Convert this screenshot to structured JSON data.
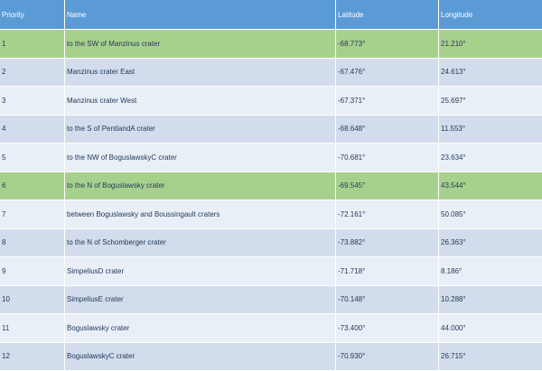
{
  "columns": [
    "Priority",
    "Name",
    "Latitude",
    "Longitude"
  ],
  "rows": [
    {
      "priority": "1",
      "name": "to the SW of Manzinus crater",
      "lat": "-68.773°",
      "lon": "21.210°",
      "highlight": true
    },
    {
      "priority": "2",
      "name": "Manzinus crater East",
      "lat": "-67.476°",
      "lon": "24.613°",
      "highlight": false
    },
    {
      "priority": "3",
      "name": "Manzinus crater West",
      "lat": "-67.371°",
      "lon": "25.697°",
      "highlight": false
    },
    {
      "priority": "4",
      "name": "to the S of PentlandA crater",
      "lat": "-68.648°",
      "lon": "11.553°",
      "highlight": false
    },
    {
      "priority": "5",
      "name": "to the NW of BoguslawskyC crater",
      "lat": "-70.681°",
      "lon": "23.634°",
      "highlight": false
    },
    {
      "priority": "6",
      "name": "to the N of Boguslawsky crater",
      "lat": "-69.545°",
      "lon": "43.544°",
      "highlight": true
    },
    {
      "priority": "7",
      "name": "between Boguslawsky and Boussingault craters",
      "lat": "-72.161°",
      "lon": "50.085°",
      "highlight": false
    },
    {
      "priority": "8",
      "name": "to the N of Schomberger crater",
      "lat": "-73.882°",
      "lon": "26.363°",
      "highlight": false
    },
    {
      "priority": "9",
      "name": "SimpeliusD crater",
      "lat": "-71.718°",
      "lon": "8.186°",
      "highlight": false
    },
    {
      "priority": "10",
      "name": "SimpeliusE crater",
      "lat": "-70.148°",
      "lon": "10.288°",
      "highlight": false
    },
    {
      "priority": "11",
      "name": "Boguslawsky crater",
      "lat": "-73.400°",
      "lon": "44.000°",
      "highlight": false
    },
    {
      "priority": "12",
      "name": "BoguslawskyC crater",
      "lat": "-70.930°",
      "lon": "26.715°",
      "highlight": false
    }
  ],
  "colors": {
    "header": "#5b9bd5",
    "row_dark": "#d2dcec",
    "row_light": "#e9eff7",
    "highlight": "#a8d08d"
  }
}
